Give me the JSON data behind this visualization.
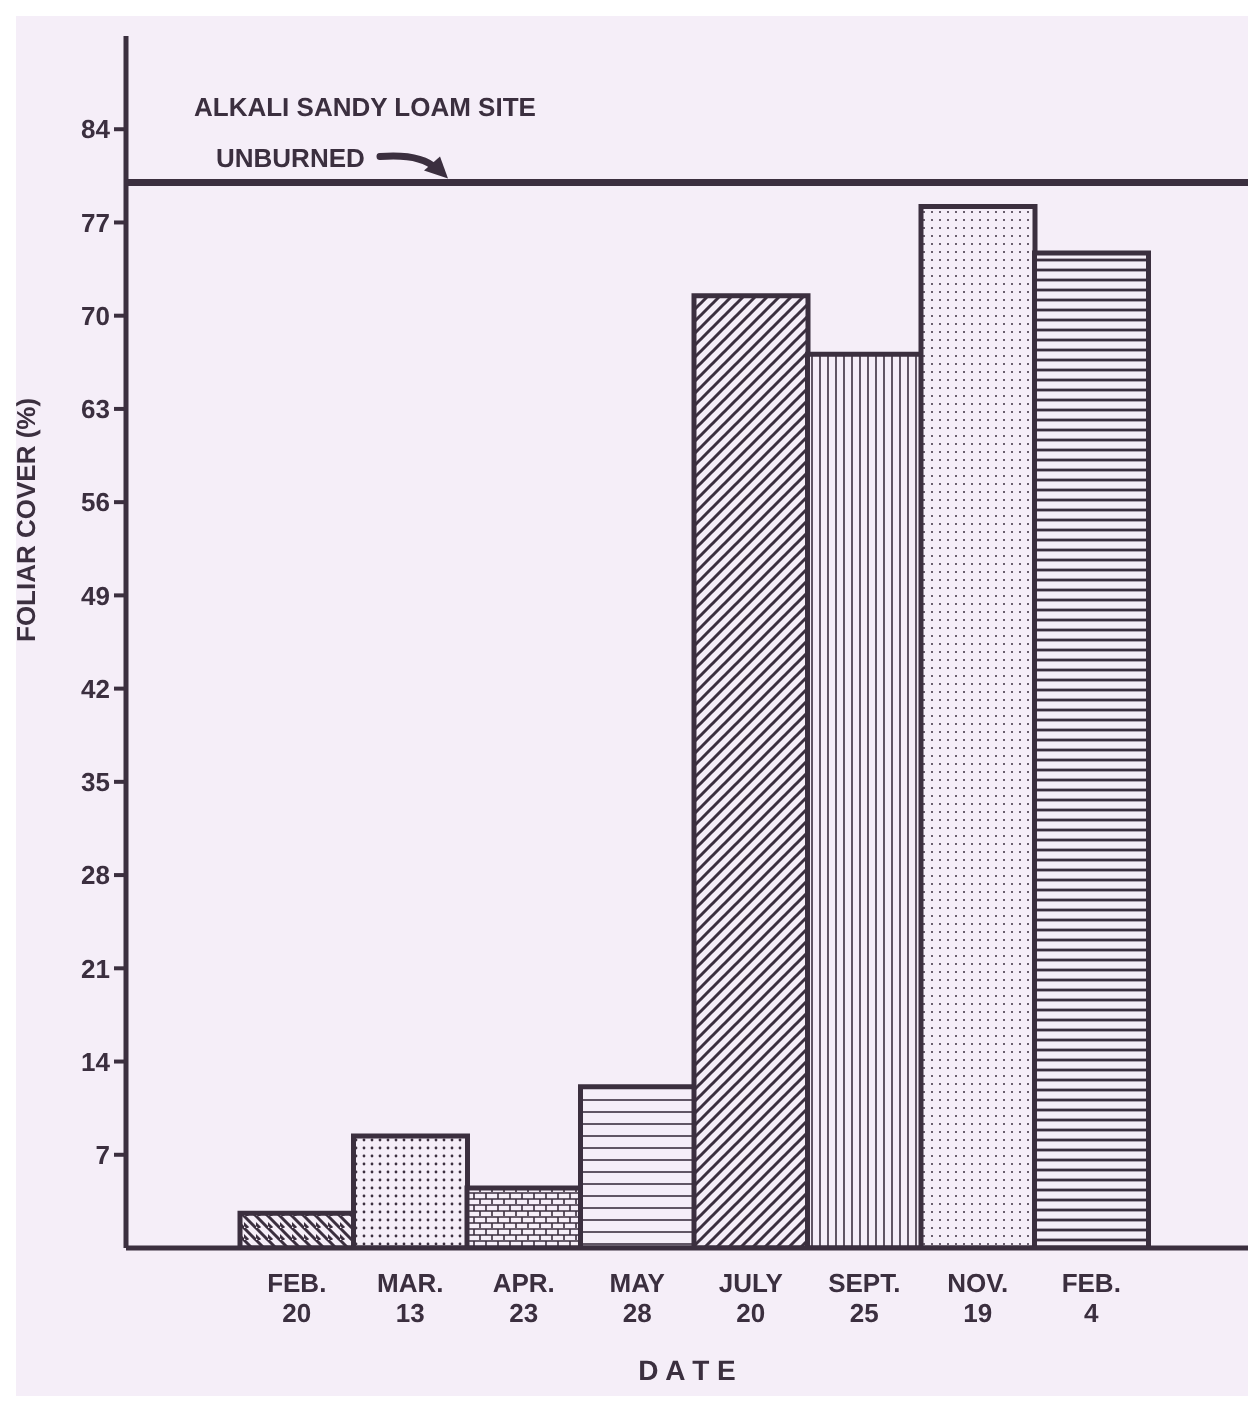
{
  "chart_data": {
    "type": "bar",
    "title": "ALKALI SANDY LOAM SITE",
    "xlabel": "D A T E",
    "ylabel": "FOLIAR COVER (%)",
    "categories": [
      "FEB. 20",
      "MAR. 13",
      "APR. 23",
      "MAY 28",
      "JULY 20",
      "SEPT. 25",
      "NOV. 19",
      "FEB. 4"
    ],
    "values": [
      2.6,
      8.4,
      4.5,
      12.1,
      71.5,
      67.1,
      78.2,
      74.7
    ],
    "colors": [
      "#3b2f3f",
      "#3b2f3f",
      "#3b2f3f",
      "#3b2f3f",
      "#3b2f3f",
      "#3b2f3f",
      "#3b2f3f",
      "#3b2f3f"
    ],
    "ylim": [
      0,
      91
    ],
    "yticks": [
      7,
      14,
      21,
      28,
      35,
      42,
      49,
      56,
      63,
      70,
      77,
      84
    ],
    "ref_lines": [
      {
        "axis": "y",
        "value": 80,
        "label": "UNBURNED",
        "color": "#3b2f3f"
      }
    ]
  }
}
